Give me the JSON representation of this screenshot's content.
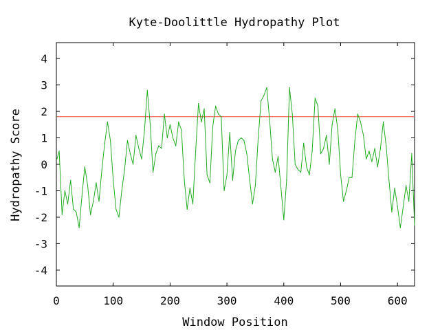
{
  "chart_data": {
    "type": "line",
    "title": "Kyte-Doolittle Hydropathy Plot",
    "xlabel": "Window Position",
    "ylabel": "Hydropathy Score",
    "xlim": [
      0,
      630
    ],
    "ylim": [
      -4.6,
      4.6
    ],
    "xticks": [
      0,
      100,
      200,
      300,
      400,
      500,
      600
    ],
    "yticks": [
      4,
      3,
      2,
      1,
      0,
      -1,
      -2,
      -3,
      -4
    ],
    "grid": false,
    "threshold": {
      "y": 1.8,
      "color": "#e8423a"
    },
    "series": [
      {
        "color": "#22aa22",
        "x": [
          1,
          5,
          10,
          15,
          20,
          25,
          30,
          35,
          40,
          45,
          50,
          55,
          60,
          65,
          70,
          75,
          80,
          85,
          90,
          95,
          100,
          105,
          110,
          115,
          120,
          125,
          130,
          135,
          140,
          145,
          150,
          155,
          160,
          165,
          170,
          175,
          180,
          185,
          190,
          195,
          200,
          205,
          210,
          215,
          220,
          225,
          230,
          235,
          240,
          245,
          250,
          255,
          260,
          265,
          270,
          275,
          280,
          285,
          290,
          295,
          300,
          305,
          310,
          315,
          320,
          325,
          330,
          335,
          340,
          345,
          350,
          355,
          360,
          365,
          370,
          375,
          380,
          385,
          390,
          395,
          400,
          405,
          410,
          415,
          420,
          425,
          430,
          435,
          440,
          445,
          450,
          455,
          460,
          465,
          470,
          475,
          480,
          485,
          490,
          495,
          500,
          505,
          510,
          515,
          520,
          525,
          530,
          535,
          540,
          545,
          550,
          555,
          560,
          565,
          570,
          575,
          580,
          585,
          590,
          595,
          600,
          605,
          610,
          615,
          620,
          625,
          630
        ],
        "y": [
          0.2,
          0.5,
          -1.9,
          -1.0,
          -1.5,
          -0.6,
          -1.7,
          -1.8,
          -2.4,
          -1.2,
          -0.1,
          -0.8,
          -1.9,
          -1.4,
          -0.7,
          -1.4,
          -0.2,
          0.8,
          1.6,
          0.9,
          -0.6,
          -1.7,
          -2.0,
          -1.0,
          -0.2,
          0.9,
          0.4,
          0.0,
          1.1,
          0.6,
          0.2,
          1.3,
          2.8,
          1.5,
          -0.3,
          0.4,
          0.7,
          0.6,
          1.9,
          1.0,
          1.5,
          1.0,
          0.7,
          1.6,
          1.3,
          -0.6,
          -1.7,
          -0.9,
          -1.5,
          0.5,
          2.3,
          1.6,
          2.1,
          -0.4,
          -0.7,
          1.4,
          2.2,
          1.9,
          1.8,
          -1.0,
          -0.4,
          1.2,
          -0.6,
          0.5,
          0.9,
          1.0,
          0.9,
          0.4,
          -0.6,
          -1.5,
          -0.8,
          1.0,
          2.4,
          2.6,
          2.9,
          1.7,
          0.2,
          -0.3,
          0.3,
          -0.9,
          -2.1,
          -0.6,
          2.9,
          1.9,
          0.0,
          -0.2,
          -0.3,
          0.8,
          -0.1,
          -0.4,
          0.5,
          2.5,
          2.2,
          0.4,
          0.6,
          1.1,
          0.0,
          1.5,
          2.1,
          1.3,
          -0.4,
          -1.4,
          -1.0,
          -0.5,
          -0.5,
          0.9,
          1.9,
          1.6,
          1.1,
          0.2,
          0.5,
          0.1,
          0.6,
          -0.1,
          0.6,
          1.6,
          0.7,
          -0.6,
          -1.8,
          -0.9,
          -1.6,
          -2.4,
          -1.6,
          -0.8,
          -1.4,
          0.4,
          -2.3
        ]
      }
    ]
  }
}
